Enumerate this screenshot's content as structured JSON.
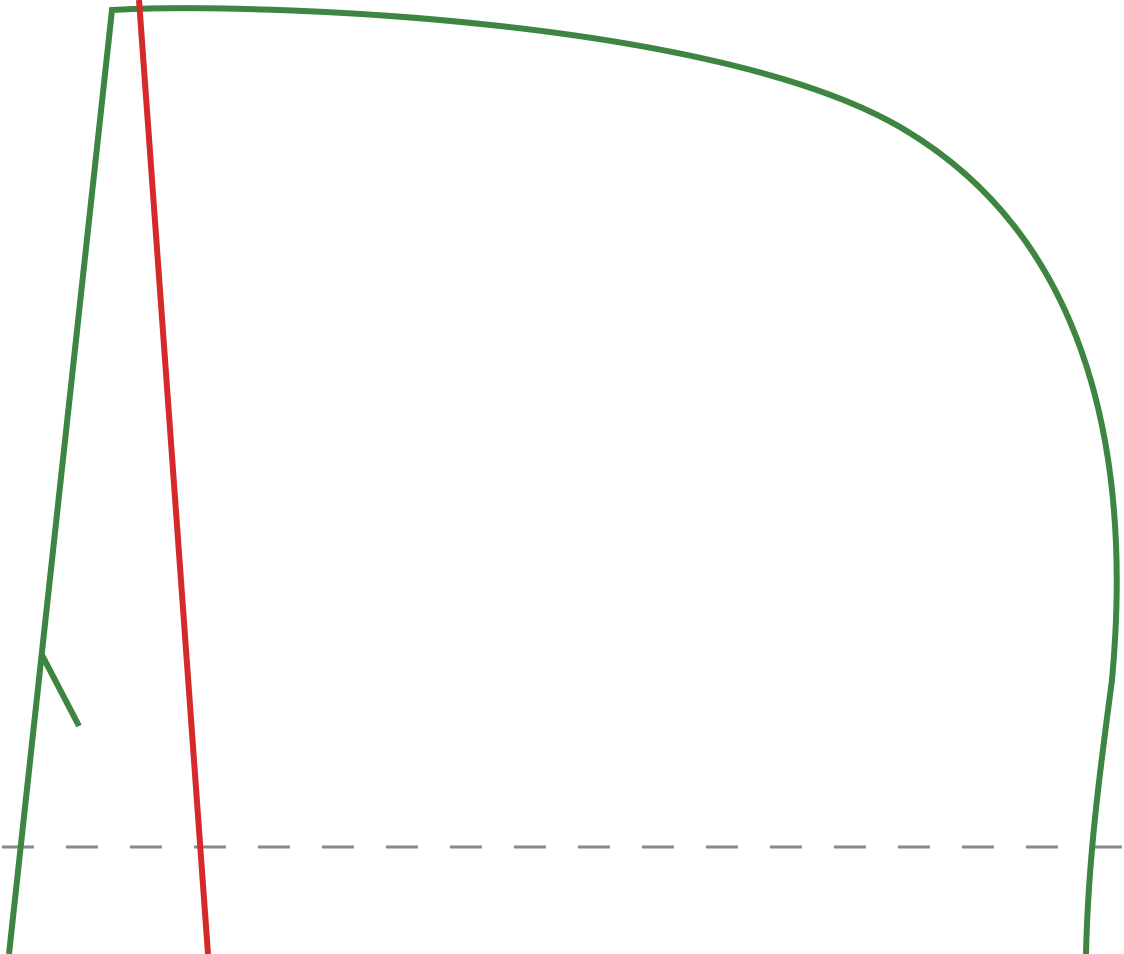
{
  "diagram": {
    "colors": {
      "background": "#ffffff",
      "green_curve": "#3d8540",
      "red_line": "#d42a2a",
      "dashed_line": "#8a8a8a"
    },
    "elements": [
      {
        "id": "green-outline-curve",
        "type": "curve",
        "color_key": "green_curve"
      },
      {
        "id": "green-tick-mark",
        "type": "segment",
        "color_key": "green_curve"
      },
      {
        "id": "red-steep-line",
        "type": "segment",
        "color_key": "red_line"
      },
      {
        "id": "horizontal-dashed-line",
        "type": "dashed-line",
        "color_key": "dashed_line"
      }
    ]
  }
}
